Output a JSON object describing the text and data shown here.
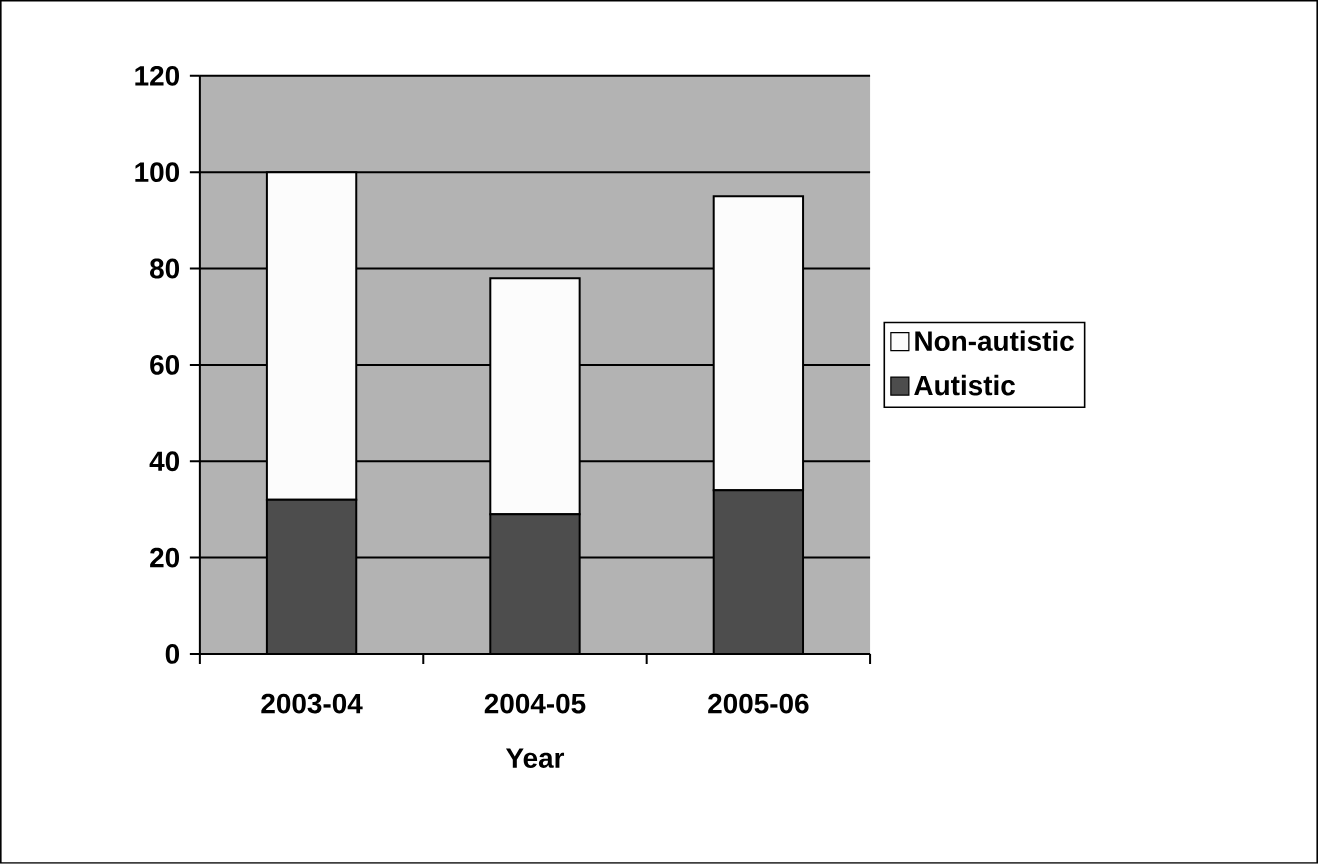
{
  "chart_data": {
    "type": "bar",
    "stacked": true,
    "xlabel": "Year",
    "categories": [
      "2003-04",
      "2004-05",
      "2005-06"
    ],
    "series": [
      {
        "name": "Autistic",
        "color": "#4d4d4d",
        "values": [
          32,
          29,
          34
        ]
      },
      {
        "name": "Non-autistic",
        "color": "#fcfcfc",
        "values": [
          68,
          49,
          61
        ]
      }
    ],
    "ylim": [
      0,
      120
    ],
    "yticks": [
      0,
      20,
      40,
      60,
      80,
      100,
      120
    ],
    "grid": "y",
    "legend": "right"
  }
}
